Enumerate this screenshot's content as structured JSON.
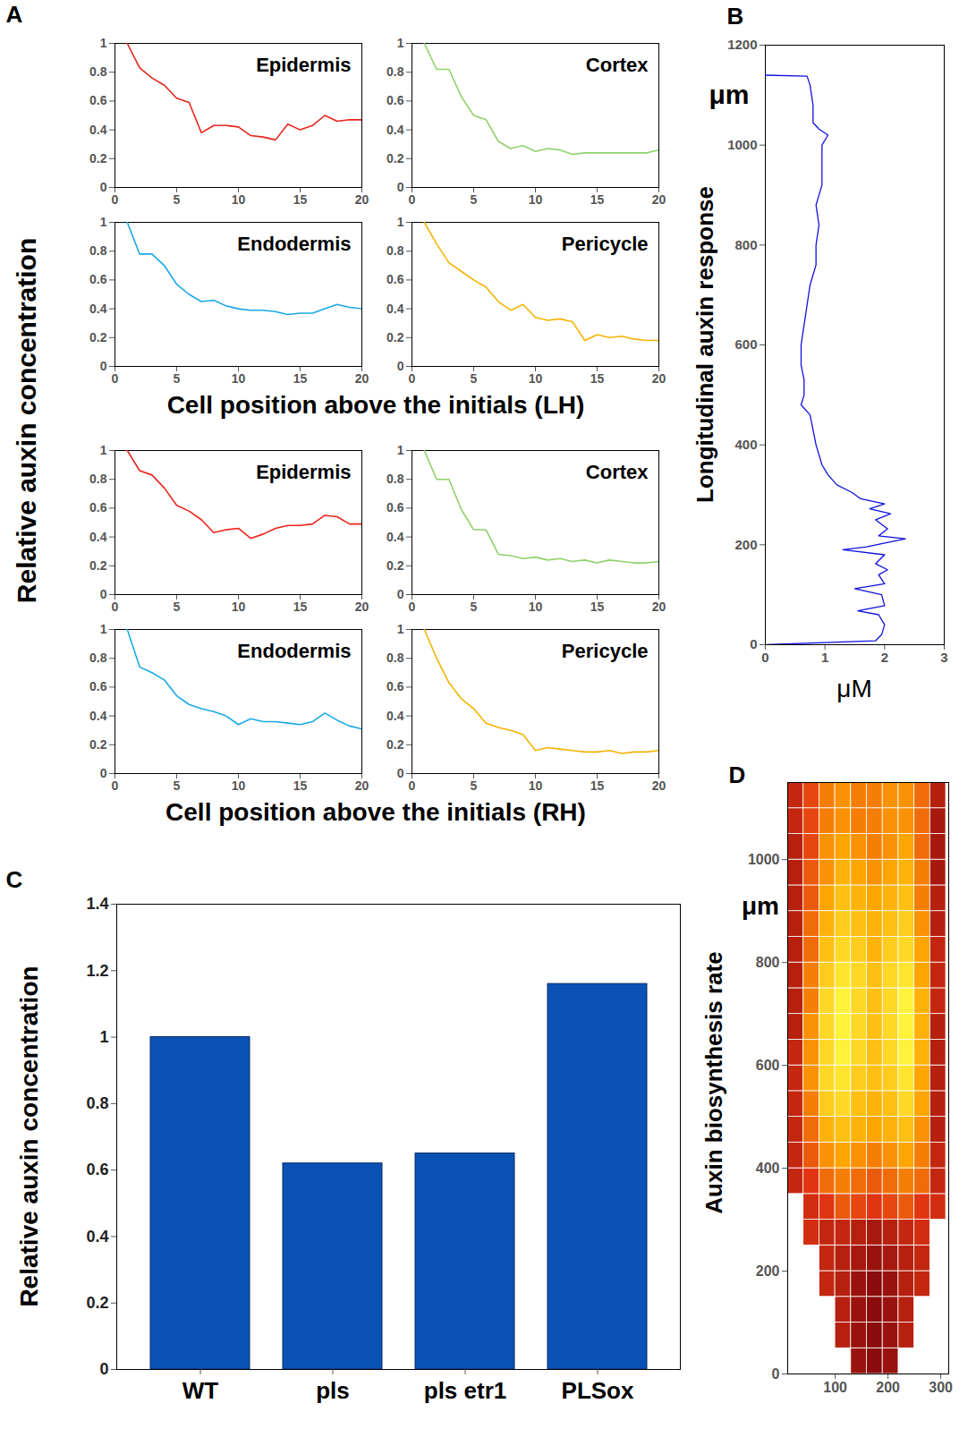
{
  "chart_data": [
    {
      "type": "line",
      "panel_label": "A",
      "ylabel": "Relative auxin concentration",
      "x": [
        1,
        2,
        3,
        4,
        5,
        6,
        7,
        8,
        9,
        10,
        11,
        12,
        13,
        14,
        15,
        16,
        17,
        18,
        19,
        20
      ],
      "xlim": [
        0,
        20
      ],
      "xticks": [
        0,
        5,
        10,
        15,
        20
      ],
      "ylim": [
        0,
        1
      ],
      "yticks": [
        0,
        0.2,
        0.4,
        0.6,
        0.8,
        1
      ],
      "groups": [
        {
          "xlabel": "Cell position above the initials (LH)",
          "panels": [
            {
              "title": "Epidermis",
              "color": "#e8231a",
              "values": [
                1,
                0.83,
                0.76,
                0.71,
                0.62,
                0.59,
                0.38,
                0.43,
                0.43,
                0.42,
                0.36,
                0.35,
                0.33,
                0.44,
                0.4,
                0.43,
                0.5,
                0.46,
                0.47,
                0.47
              ]
            },
            {
              "title": "Cortex",
              "color": "#8fd16a",
              "values": [
                1,
                0.82,
                0.82,
                0.63,
                0.5,
                0.47,
                0.32,
                0.27,
                0.29,
                0.25,
                0.27,
                0.26,
                0.23,
                0.24,
                0.24,
                0.24,
                0.24,
                0.24,
                0.24,
                0.26
              ]
            },
            {
              "title": "Endodermis",
              "color": "#1aa9e6",
              "values": [
                1,
                0.78,
                0.78,
                0.7,
                0.57,
                0.5,
                0.45,
                0.46,
                0.42,
                0.4,
                0.39,
                0.39,
                0.38,
                0.36,
                0.37,
                0.37,
                0.4,
                0.43,
                0.41,
                0.4
              ]
            },
            {
              "title": "Pericycle",
              "color": "#f5b300",
              "values": [
                1,
                0.85,
                0.72,
                0.66,
                0.6,
                0.55,
                0.45,
                0.39,
                0.43,
                0.34,
                0.32,
                0.33,
                0.31,
                0.18,
                0.22,
                0.2,
                0.21,
                0.19,
                0.18,
                0.18
              ]
            }
          ]
        },
        {
          "xlabel": "Cell position above the initials (RH)",
          "panels": [
            {
              "title": "Epidermis",
              "color": "#e8231a",
              "values": [
                1,
                0.86,
                0.83,
                0.74,
                0.62,
                0.58,
                0.52,
                0.43,
                0.45,
                0.46,
                0.39,
                0.42,
                0.46,
                0.48,
                0.48,
                0.49,
                0.55,
                0.54,
                0.49,
                0.49
              ]
            },
            {
              "title": "Cortex",
              "color": "#8fd16a",
              "values": [
                1,
                0.8,
                0.8,
                0.59,
                0.45,
                0.45,
                0.28,
                0.27,
                0.25,
                0.26,
                0.24,
                0.25,
                0.23,
                0.24,
                0.22,
                0.24,
                0.23,
                0.22,
                0.22,
                0.23
              ]
            },
            {
              "title": "Endodermis",
              "color": "#1aa9e6",
              "values": [
                1,
                0.74,
                0.7,
                0.65,
                0.54,
                0.48,
                0.45,
                0.43,
                0.4,
                0.34,
                0.38,
                0.36,
                0.36,
                0.35,
                0.34,
                0.36,
                0.42,
                0.37,
                0.33,
                0.31
              ]
            },
            {
              "title": "Pericycle",
              "color": "#f5b300",
              "values": [
                1,
                0.8,
                0.63,
                0.52,
                0.45,
                0.35,
                0.32,
                0.3,
                0.27,
                0.16,
                0.18,
                0.17,
                0.16,
                0.15,
                0.15,
                0.16,
                0.14,
                0.15,
                0.15,
                0.16
              ]
            }
          ]
        }
      ]
    },
    {
      "type": "line",
      "panel_label": "B",
      "xlabel": "μM",
      "ylabel": "Longitudinal auxin response",
      "annotations": [
        "μm"
      ],
      "color": "#1010e0",
      "x": [
        0.02,
        1.85,
        1.95,
        2.0,
        1.9,
        1.55,
        2.0,
        1.95,
        1.5,
        2.0,
        1.9,
        2.05,
        1.85,
        2.0,
        1.3,
        1.7,
        1.95,
        2.35,
        1.9,
        2.05,
        1.85,
        2.1,
        1.75,
        2.0,
        1.6,
        1.45,
        1.2,
        1.05,
        0.95,
        0.9,
        0.85,
        0.8,
        0.75,
        0.6,
        0.65,
        0.65,
        0.6,
        0.6,
        0.65,
        0.7,
        0.75,
        0.85,
        0.85,
        0.9,
        0.85,
        0.95,
        0.95,
        0.95,
        1.05,
        0.9,
        0.8,
        0.8,
        0.75,
        0.7,
        0.0
      ],
      "y": [
        0,
        8,
        20,
        40,
        60,
        68,
        78,
        100,
        112,
        122,
        140,
        150,
        162,
        180,
        190,
        196,
        202,
        212,
        218,
        232,
        250,
        262,
        272,
        282,
        292,
        305,
        320,
        340,
        360,
        380,
        400,
        430,
        460,
        480,
        500,
        530,
        560,
        600,
        640,
        680,
        720,
        760,
        800,
        840,
        880,
        920,
        960,
        1000,
        1020,
        1032,
        1045,
        1080,
        1120,
        1138,
        1140
      ],
      "xlim": [
        0,
        3
      ],
      "xticks": [
        0,
        1,
        2,
        3
      ],
      "ylim": [
        0,
        1200
      ],
      "yticks": [
        0,
        200,
        400,
        600,
        800,
        1000,
        1200
      ]
    },
    {
      "type": "bar",
      "panel_label": "C",
      "ylabel": "Relative auxin concentration",
      "categories": [
        "WT",
        "pls",
        "pls etr1",
        "PLSox"
      ],
      "values": [
        1,
        0.62,
        0.65,
        1.16
      ],
      "color": "#0a52b5",
      "ylim": [
        0,
        1.4
      ],
      "yticks": [
        0,
        0.2,
        0.4,
        0.6,
        0.8,
        1,
        1.2,
        1.4
      ]
    },
    {
      "type": "heatmap",
      "panel_label": "D",
      "ylabel": "Auxin biosynthesis rate",
      "annotations": [
        "μm"
      ],
      "x_edges": [
        10,
        40,
        70,
        100,
        130,
        160,
        190,
        220,
        250,
        280,
        310
      ],
      "y_edges": [
        0,
        50,
        100,
        150,
        200,
        250,
        300,
        350,
        400,
        450,
        500,
        550,
        600,
        650,
        700,
        750,
        800,
        850,
        900,
        950,
        1000,
        1050,
        1100,
        1150
      ],
      "cells": [
        [
          null,
          null,
          null,
          null,
          0.95,
          1.0,
          0.95,
          null,
          null,
          null
        ],
        [
          null,
          null,
          null,
          0.85,
          0.95,
          1.0,
          0.95,
          0.85,
          null,
          null
        ],
        [
          null,
          null,
          null,
          0.85,
          0.95,
          1.0,
          0.95,
          0.85,
          null,
          null
        ],
        [
          null,
          null,
          0.8,
          0.85,
          0.95,
          1.0,
          0.95,
          0.85,
          0.8,
          null
        ],
        [
          null,
          null,
          0.8,
          0.85,
          0.9,
          0.95,
          0.9,
          0.85,
          0.8,
          null
        ],
        [
          null,
          0.75,
          0.8,
          0.8,
          0.85,
          0.9,
          0.85,
          0.8,
          0.75,
          null
        ],
        [
          null,
          0.75,
          0.7,
          0.6,
          0.65,
          0.7,
          0.65,
          0.6,
          0.7,
          0.75
        ],
        [
          0.8,
          0.7,
          0.55,
          0.5,
          0.55,
          0.6,
          0.55,
          0.5,
          0.55,
          0.8
        ],
        [
          0.8,
          0.6,
          0.45,
          0.4,
          0.45,
          0.5,
          0.45,
          0.4,
          0.5,
          0.8
        ],
        [
          0.8,
          0.55,
          0.35,
          0.3,
          0.35,
          0.4,
          0.35,
          0.3,
          0.45,
          0.85
        ],
        [
          0.8,
          0.5,
          0.25,
          0.2,
          0.3,
          0.35,
          0.3,
          0.2,
          0.4,
          0.85
        ],
        [
          0.8,
          0.45,
          0.2,
          0.15,
          0.25,
          0.3,
          0.25,
          0.15,
          0.4,
          0.85
        ],
        [
          0.8,
          0.45,
          0.2,
          0.1,
          0.2,
          0.3,
          0.2,
          0.1,
          0.35,
          0.85
        ],
        [
          0.85,
          0.45,
          0.2,
          0.1,
          0.2,
          0.3,
          0.2,
          0.1,
          0.35,
          0.85
        ],
        [
          0.85,
          0.5,
          0.2,
          0.1,
          0.2,
          0.3,
          0.2,
          0.1,
          0.35,
          0.8
        ],
        [
          0.85,
          0.5,
          0.25,
          0.15,
          0.2,
          0.3,
          0.2,
          0.15,
          0.4,
          0.8
        ],
        [
          0.85,
          0.55,
          0.3,
          0.2,
          0.25,
          0.35,
          0.25,
          0.2,
          0.4,
          0.8
        ],
        [
          0.85,
          0.55,
          0.35,
          0.25,
          0.3,
          0.35,
          0.3,
          0.25,
          0.45,
          0.85
        ],
        [
          0.85,
          0.6,
          0.4,
          0.3,
          0.35,
          0.4,
          0.35,
          0.3,
          0.5,
          0.85
        ],
        [
          0.85,
          0.6,
          0.45,
          0.35,
          0.4,
          0.45,
          0.4,
          0.35,
          0.5,
          0.9
        ],
        [
          0.85,
          0.65,
          0.45,
          0.4,
          0.45,
          0.5,
          0.45,
          0.4,
          0.55,
          0.9
        ],
        [
          0.8,
          0.65,
          0.5,
          0.45,
          0.5,
          0.5,
          0.45,
          0.45,
          0.55,
          0.9
        ],
        [
          0.8,
          0.65,
          0.5,
          0.45,
          0.5,
          0.5,
          0.45,
          0.45,
          0.55,
          0.85
        ]
      ],
      "xlim": [
        10,
        315
      ],
      "xticks": [
        100,
        200,
        300
      ],
      "ylim": [
        0,
        1150
      ],
      "yticks": [
        0,
        200,
        400,
        600,
        800,
        1000
      ]
    }
  ]
}
